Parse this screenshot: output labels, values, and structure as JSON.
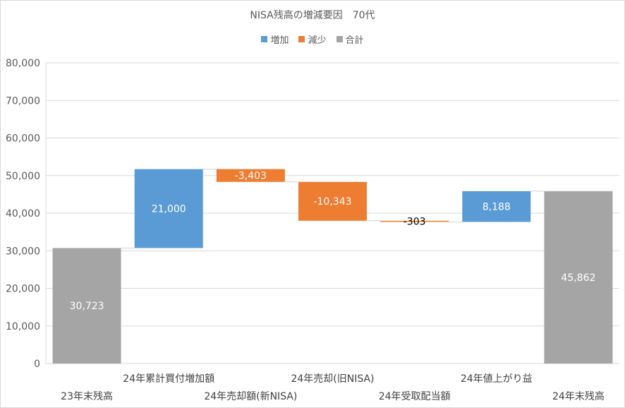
{
  "chart_data": {
    "type": "waterfall",
    "title": "NISA残高の増減要因　70代",
    "legend": [
      {
        "label": "増加",
        "color": "#5b9bd5"
      },
      {
        "label": "減少",
        "color": "#ed7d31"
      },
      {
        "label": "合計",
        "color": "#a5a5a5"
      }
    ],
    "legend_position": "top",
    "ylim": [
      0,
      80000
    ],
    "yticks": [
      "0",
      "10,000",
      "20,000",
      "30,000",
      "40,000",
      "50,000",
      "60,000",
      "70,000",
      "80,000"
    ],
    "grid": true,
    "bars": [
      {
        "category": "23年末残高",
        "kind": "total",
        "base": 0,
        "value": 30723,
        "label": "30,723"
      },
      {
        "category": "24年累計買付増加額",
        "kind": "increase",
        "base": 30723,
        "value": 21000,
        "label": "21,000"
      },
      {
        "category": "24年売却額(新NISA)",
        "kind": "decrease",
        "base": 51723,
        "value": -3403,
        "label": "-3,403"
      },
      {
        "category": "24年売却(旧NISA)",
        "kind": "decrease",
        "base": 48320,
        "value": -10343,
        "label": "-10,343"
      },
      {
        "category": "24年受取配当額",
        "kind": "decrease",
        "base": 37977,
        "value": -303,
        "label": "-303"
      },
      {
        "category": "24年値上がり益",
        "kind": "increase",
        "base": 37674,
        "value": 8188,
        "label": "8,188"
      },
      {
        "category": "24年末残高",
        "kind": "total",
        "base": 0,
        "value": 45862,
        "label": "45,862"
      }
    ],
    "colors": {
      "increase": "#5b9bd5",
      "decrease": "#ed7d31",
      "total": "#a5a5a5"
    }
  }
}
